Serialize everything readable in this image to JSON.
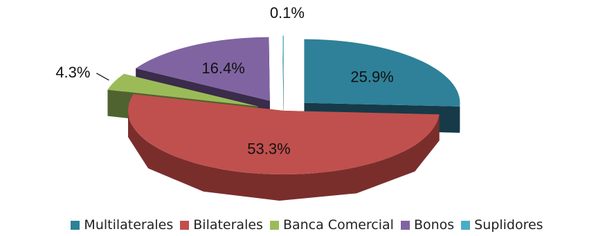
{
  "chart_data": {
    "type": "pie",
    "title": "",
    "categories": [
      "Multilaterales",
      "Bilaterales",
      "Banca Comercial",
      "Bonos",
      "Suplidores"
    ],
    "values": [
      25.9,
      53.3,
      4.3,
      16.4,
      0.1
    ],
    "data_labels": [
      "25.9%",
      "53.3%",
      "4.3%",
      "16.4%",
      "0.1%"
    ],
    "colors": [
      "#2e8199",
      "#c0504d",
      "#9bbb59",
      "#8064a2",
      "#4bacc6"
    ],
    "side_colors": [
      "#163a48",
      "#7a2e2c",
      "#4f6330",
      "#3a2c4a",
      "#23616f"
    ],
    "style": "3d-exploded",
    "legend_position": "bottom"
  }
}
